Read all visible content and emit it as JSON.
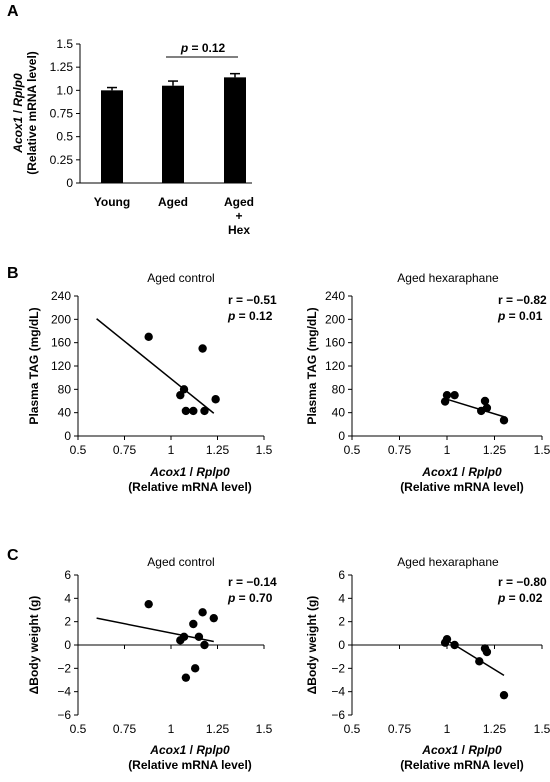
{
  "panel_letters": [
    "A",
    "B",
    "C"
  ],
  "chart_data": [
    {
      "panel": "A",
      "type": "bar",
      "categories": [
        [
          "Young"
        ],
        [
          "Aged"
        ],
        [
          "Aged",
          "+",
          "Hex"
        ]
      ],
      "values": [
        1.0,
        1.05,
        1.14
      ],
      "errors": [
        0.03,
        0.05,
        0.04
      ],
      "ylabel_lines": [
        "Acox1 / Rplp0",
        "(Relative mRNA level)"
      ],
      "yticks": [
        "0",
        "0.25",
        "0.5",
        "0.75",
        "1.0",
        "1.25",
        "1.5"
      ],
      "ylim": [
        0,
        1.5
      ],
      "annotation": {
        "p_letter": "p",
        "rest": " = 0.12"
      },
      "bar_color": "#000000"
    },
    {
      "panel": "B-left",
      "type": "scatter",
      "title": "Aged control",
      "x": [
        0.88,
        1.05,
        1.07,
        1.08,
        1.12,
        1.17,
        1.18,
        1.24
      ],
      "y": [
        170,
        70,
        80,
        43,
        43,
        150,
        43,
        63
      ],
      "fit": {
        "x": [
          0.6,
          1.23
        ],
        "y": [
          201,
          39
        ]
      },
      "xlim": [
        0.5,
        1.5
      ],
      "ylim": [
        0,
        240
      ],
      "xticks": [
        "0.5",
        "0.75",
        "1",
        "1.25",
        "1.5"
      ],
      "yticks": [
        "0",
        "40",
        "80",
        "120",
        "160",
        "200",
        "240"
      ],
      "ylabel": "Plasma TAG (mg/dL)",
      "xlabel_lines": [
        "Acox1 / Rplp0",
        "(Relative mRNA level)"
      ],
      "r_text": "r = −0.51",
      "p_text": " = 0.12"
    },
    {
      "panel": "B-right",
      "type": "scatter",
      "title": "Aged hexaraphane",
      "x": [
        0.99,
        1.0,
        1.04,
        1.18,
        1.2,
        1.21,
        1.3
      ],
      "y": [
        59,
        70,
        70,
        43,
        60,
        48,
        27
      ],
      "fit": {
        "x": [
          0.99,
          1.3
        ],
        "y": [
          64,
          33
        ]
      },
      "xlim": [
        0.5,
        1.5
      ],
      "ylim": [
        0,
        240
      ],
      "xticks": [
        "0.5",
        "0.75",
        "1",
        "1.25",
        "1.5"
      ],
      "yticks": [
        "0",
        "40",
        "80",
        "120",
        "160",
        "200",
        "240"
      ],
      "ylabel": "Plasma TAG (mg/dL)",
      "xlabel_lines": [
        "Acox1 / Rplp0",
        "(Relative mRNA level)"
      ],
      "r_text": "r = −0.82",
      "p_text": " = 0.01"
    },
    {
      "panel": "C-left",
      "type": "scatter",
      "title": "Aged control",
      "x": [
        0.88,
        1.05,
        1.07,
        1.08,
        1.12,
        1.13,
        1.15,
        1.17,
        1.18,
        1.23
      ],
      "y": [
        3.5,
        0.4,
        0.7,
        -2.8,
        1.8,
        -2.0,
        0.7,
        2.8,
        0.0,
        2.3
      ],
      "fit": {
        "x": [
          0.6,
          1.23
        ],
        "y": [
          2.3,
          0.3
        ]
      },
      "xlim": [
        0.5,
        1.5
      ],
      "ylim": [
        -6,
        6
      ],
      "xticks": [
        "0.5",
        "0.75",
        "1",
        "1.25",
        "1.5"
      ],
      "yticks": [
        "−6",
        "−4",
        "−2",
        "0",
        "2",
        "4",
        "6"
      ],
      "ylabel": "ΔBody weight (g)",
      "xlabel_lines": [
        "Acox1 / Rplp0",
        "(Relative mRNA level)"
      ],
      "r_text": "r = −0.14",
      "p_text": " = 0.70"
    },
    {
      "panel": "C-right",
      "type": "scatter",
      "title": "Aged hexaraphane",
      "x": [
        0.99,
        1.0,
        1.04,
        1.17,
        1.2,
        1.21,
        1.3
      ],
      "y": [
        0.2,
        0.5,
        0.0,
        -1.4,
        -0.3,
        -0.6,
        -4.3
      ],
      "fit": {
        "x": [
          0.99,
          1.3
        ],
        "y": [
          0.5,
          -2.6
        ]
      },
      "xlim": [
        0.5,
        1.5
      ],
      "ylim": [
        -6,
        6
      ],
      "xticks": [
        "0.5",
        "0.75",
        "1",
        "1.25",
        "1.5"
      ],
      "yticks": [
        "−6",
        "−4",
        "−2",
        "0",
        "2",
        "4",
        "6"
      ],
      "ylabel": "ΔBody weight (g)",
      "xlabel_lines": [
        "Acox1 / Rplp0",
        "(Relative mRNA level)"
      ],
      "r_text": "r = −0.80",
      "p_text": " = 0.02"
    }
  ]
}
